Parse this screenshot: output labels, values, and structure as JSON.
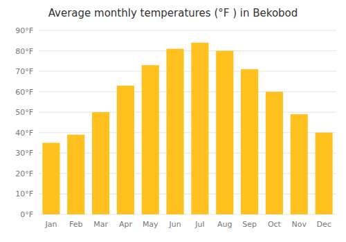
{
  "chart_data": {
    "type": "bar",
    "title": "Average monthly temperatures (°F ) in Bekobod",
    "categories": [
      "Jan",
      "Feb",
      "Mar",
      "Apr",
      "May",
      "Jun",
      "Jul",
      "Aug",
      "Sep",
      "Oct",
      "Nov",
      "Dec"
    ],
    "values": [
      35,
      39,
      50,
      63,
      73,
      81,
      84,
      80,
      71,
      60,
      49,
      40
    ],
    "color": "#FFC020",
    "ylim": [
      0,
      90
    ],
    "yticks": [
      {
        "value": 0,
        "label": "0°F"
      },
      {
        "value": 10,
        "label": "10°F"
      },
      {
        "value": 20,
        "label": "20°F"
      },
      {
        "value": 30,
        "label": "30°F"
      },
      {
        "value": 40,
        "label": "40°F"
      },
      {
        "value": 50,
        "label": "50°F"
      },
      {
        "value": 60,
        "label": "60°F"
      },
      {
        "value": 70,
        "label": "70°F"
      },
      {
        "value": 80,
        "label": "80°F"
      },
      {
        "value": 90,
        "label": "90°F"
      }
    ],
    "grid": true
  }
}
